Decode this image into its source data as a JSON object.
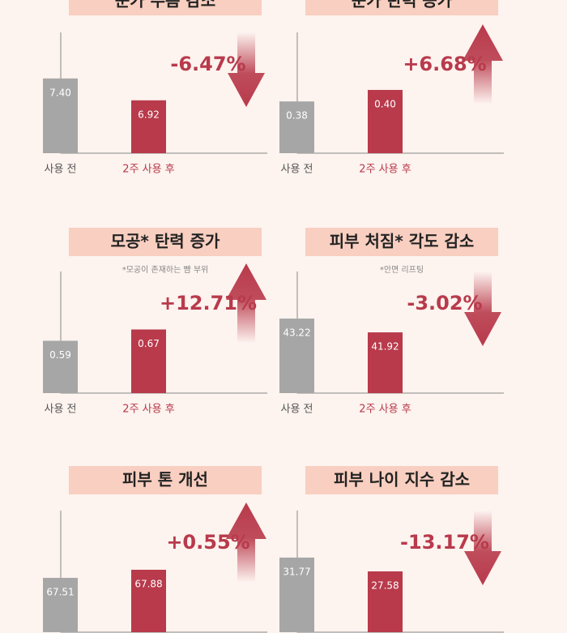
{
  "chart_data": [
    {
      "type": "bar",
      "title": "눈가 주름 감소",
      "categories": [
        "사용 전",
        "2주 사용 후"
      ],
      "values": [
        7.4,
        6.92
      ],
      "value_labels": [
        "7.40",
        "6.92"
      ],
      "colors": [
        "#a6a6a6",
        "#b83a4b"
      ],
      "ylim": [
        5.76,
        8.41
      ],
      "annotation": "-6.47%",
      "arrow": "down"
    },
    {
      "type": "bar",
      "title": "눈가 탄력 증가",
      "categories": [
        "사용 전",
        "2주 사용 후"
      ],
      "values": [
        0.38,
        0.4
      ],
      "value_labels": [
        "0.38",
        "0.40"
      ],
      "colors": [
        "#a6a6a6",
        "#b83a4b"
      ],
      "ylim": [
        0.29,
        0.5
      ],
      "annotation": "+6.68%",
      "arrow": "up"
    },
    {
      "type": "bar",
      "title": "모공* 탄력 증가",
      "note": "*모공이 존재하는 뺨 부위",
      "categories": [
        "사용 전",
        "2주 사용 후"
      ],
      "values": [
        0.59,
        0.67
      ],
      "colors": [
        "#a6a6a6",
        "#b83a4b"
      ],
      "ylim": [
        0.22,
        1.08
      ],
      "annotation": "+12.71%",
      "arrow": "up"
    },
    {
      "type": "bar",
      "title": "피부 처짐* 각도 감소",
      "note": "*안면 리프팅",
      "categories": [
        "사용 전",
        "2주 사용 후"
      ],
      "values": [
        43.22,
        41.92
      ],
      "colors": [
        "#a6a6a6",
        "#b83a4b"
      ],
      "ylim": [
        36.19,
        47.66
      ],
      "annotation": "-3.02%",
      "arrow": "down"
    },
    {
      "type": "bar",
      "title": "피부 톤 개선",
      "values": [
        67.51,
        67.88
      ],
      "colors": [
        "#a6a6a6",
        "#b83a4b"
      ],
      "ylim": [
        65.03,
        70.58
      ],
      "annotation": "+0.55%",
      "arrow": "up"
    },
    {
      "type": "bar",
      "title": "피부 나이 지수 감소",
      "values": [
        31.77,
        27.58
      ],
      "colors": [
        "#a6a6a6",
        "#b83a4b"
      ],
      "ylim": [
        9.09,
        46.06
      ],
      "annotation": "-13.17%",
      "arrow": "down"
    }
  ]
}
